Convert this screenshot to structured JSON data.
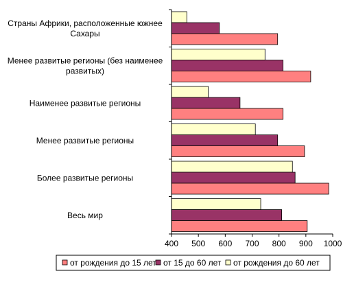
{
  "chart_data": {
    "type": "bar",
    "orientation": "horizontal",
    "categories": [
      [
        "Страны Африки, расположенные южнее",
        "Сахары"
      ],
      [
        "Менее развитые регионы (без наименее",
        "развитых)"
      ],
      [
        "Наименее развитые регионы"
      ],
      [
        "Менее развитые регионы"
      ],
      [
        "Более развитые регионы"
      ],
      [
        "Весь мир"
      ]
    ],
    "series": [
      {
        "name": "от рождения до 60 лет",
        "color": "#FFFFCC",
        "values": [
          457,
          748,
          537,
          712,
          850,
          732
        ]
      },
      {
        "name": "от 15 до 60 лет",
        "color": "#993366",
        "values": [
          578,
          815,
          655,
          795,
          860,
          810
        ]
      },
      {
        "name": "от рождения до 15 лет",
        "color": "#FF8080",
        "values": [
          795,
          918,
          815,
          895,
          985,
          905
        ]
      }
    ],
    "xlim": [
      400,
      1000
    ],
    "xticks": [
      400,
      500,
      600,
      700,
      800,
      900,
      1000
    ],
    "grid": false,
    "legend": {
      "position": "bottom",
      "order": [
        2,
        1,
        0
      ]
    }
  }
}
